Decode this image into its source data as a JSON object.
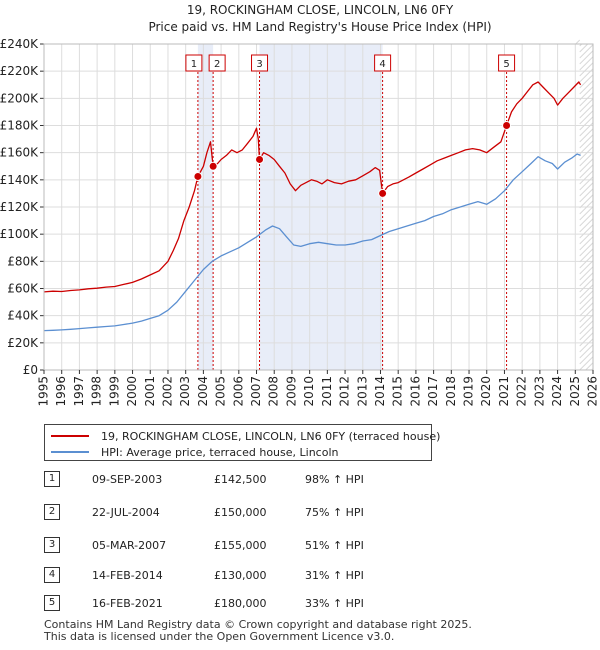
{
  "chart_data": {
    "type": "line",
    "title": "19, ROCKINGHAM CLOSE, LINCOLN, LN6 0FY",
    "subtitle": "Price paid vs. HM Land Registry's House Price Index (HPI)",
    "xlim": [
      1995,
      2026
    ],
    "ylim": [
      0,
      240000
    ],
    "y_tick_values": [
      0,
      20000,
      40000,
      60000,
      80000,
      100000,
      120000,
      140000,
      160000,
      180000,
      200000,
      220000,
      240000
    ],
    "y_tick_labels": [
      "£0",
      "£20K",
      "£40K",
      "£60K",
      "£80K",
      "£100K",
      "£120K",
      "£140K",
      "£160K",
      "£180K",
      "£200K",
      "£220K",
      "£240K"
    ],
    "x_tick_values": [
      1995,
      1996,
      1997,
      1998,
      1999,
      2000,
      2001,
      2002,
      2003,
      2004,
      2005,
      2006,
      2007,
      2008,
      2009,
      2010,
      2011,
      2012,
      2013,
      2014,
      2015,
      2016,
      2017,
      2018,
      2019,
      2020,
      2021,
      2022,
      2023,
      2024,
      2025,
      2026
    ],
    "x_tick_labels": [
      "1995",
      "1996",
      "1997",
      "1998",
      "1999",
      "2000",
      "2001",
      "2002",
      "2003",
      "2004",
      "2005",
      "2006",
      "2007",
      "2008",
      "2009",
      "2010",
      "2011",
      "2012",
      "2013",
      "2014",
      "2015",
      "2016",
      "2017",
      "2018",
      "2019",
      "2020",
      "2021",
      "2022",
      "2023",
      "2024",
      "2025",
      "2026"
    ],
    "future_start": 2025.25,
    "shaded_ranges": [
      [
        2003.69,
        2004.55
      ],
      [
        2007.17,
        2014.12
      ]
    ],
    "series": [
      {
        "name": "19, ROCKINGHAM CLOSE, LINCOLN, LN6 0FY (terraced house)",
        "color": "#cc0000",
        "points": [
          [
            1995.0,
            57500
          ],
          [
            1995.5,
            58000
          ],
          [
            1996.0,
            57800
          ],
          [
            1996.5,
            58500
          ],
          [
            1997.0,
            59000
          ],
          [
            1997.5,
            59800
          ],
          [
            1998.0,
            60200
          ],
          [
            1998.5,
            61000
          ],
          [
            1999.0,
            61500
          ],
          [
            1999.5,
            63000
          ],
          [
            2000.0,
            64500
          ],
          [
            2000.5,
            67000
          ],
          [
            2001.0,
            70000
          ],
          [
            2001.5,
            73000
          ],
          [
            2002.0,
            80000
          ],
          [
            2002.3,
            88000
          ],
          [
            2002.6,
            97000
          ],
          [
            2002.9,
            110000
          ],
          [
            2003.2,
            120000
          ],
          [
            2003.5,
            132000
          ],
          [
            2003.69,
            142500
          ],
          [
            2003.8,
            145000
          ],
          [
            2004.0,
            150000
          ],
          [
            2004.2,
            160000
          ],
          [
            2004.4,
            168000
          ],
          [
            2004.55,
            150000
          ],
          [
            2004.8,
            152000
          ],
          [
            2005.0,
            155000
          ],
          [
            2005.3,
            158000
          ],
          [
            2005.6,
            162000
          ],
          [
            2005.9,
            160000
          ],
          [
            2006.2,
            162000
          ],
          [
            2006.5,
            167000
          ],
          [
            2006.8,
            172000
          ],
          [
            2007.0,
            178000
          ],
          [
            2007.1,
            170000
          ],
          [
            2007.17,
            155000
          ],
          [
            2007.4,
            160000
          ],
          [
            2007.7,
            158000
          ],
          [
            2008.0,
            155000
          ],
          [
            2008.3,
            150000
          ],
          [
            2008.6,
            145000
          ],
          [
            2008.9,
            137000
          ],
          [
            2009.2,
            132000
          ],
          [
            2009.5,
            136000
          ],
          [
            2009.8,
            138000
          ],
          [
            2010.1,
            140000
          ],
          [
            2010.4,
            139000
          ],
          [
            2010.7,
            137000
          ],
          [
            2011.0,
            140000
          ],
          [
            2011.4,
            138000
          ],
          [
            2011.8,
            137000
          ],
          [
            2012.2,
            139000
          ],
          [
            2012.6,
            140000
          ],
          [
            2013.0,
            143000
          ],
          [
            2013.4,
            146000
          ],
          [
            2013.7,
            149000
          ],
          [
            2013.95,
            147000
          ],
          [
            2014.12,
            130000
          ],
          [
            2014.4,
            135000
          ],
          [
            2014.7,
            137000
          ],
          [
            2015.0,
            138000
          ],
          [
            2015.3,
            140000
          ],
          [
            2015.6,
            142000
          ],
          [
            2016.0,
            145000
          ],
          [
            2016.4,
            148000
          ],
          [
            2016.8,
            151000
          ],
          [
            2017.2,
            154000
          ],
          [
            2017.6,
            156000
          ],
          [
            2018.0,
            158000
          ],
          [
            2018.4,
            160000
          ],
          [
            2018.8,
            162000
          ],
          [
            2019.2,
            163000
          ],
          [
            2019.6,
            162000
          ],
          [
            2020.0,
            160000
          ],
          [
            2020.4,
            164000
          ],
          [
            2020.8,
            168000
          ],
          [
            2021.12,
            180000
          ],
          [
            2021.4,
            190000
          ],
          [
            2021.7,
            196000
          ],
          [
            2022.0,
            200000
          ],
          [
            2022.3,
            205000
          ],
          [
            2022.6,
            210000
          ],
          [
            2022.9,
            212000
          ],
          [
            2023.2,
            208000
          ],
          [
            2023.5,
            204000
          ],
          [
            2023.8,
            200000
          ],
          [
            2024.0,
            195000
          ],
          [
            2024.3,
            200000
          ],
          [
            2024.6,
            204000
          ],
          [
            2024.9,
            208000
          ],
          [
            2025.2,
            212000
          ],
          [
            2025.3,
            210000
          ]
        ]
      },
      {
        "name": "HPI: Average price, terraced house, Lincoln",
        "color": "#5b8fd1",
        "points": [
          [
            1995.0,
            29000
          ],
          [
            1995.5,
            29200
          ],
          [
            1996.0,
            29500
          ],
          [
            1996.5,
            30000
          ],
          [
            1997.0,
            30500
          ],
          [
            1997.5,
            31000
          ],
          [
            1998.0,
            31500
          ],
          [
            1998.5,
            32000
          ],
          [
            1999.0,
            32500
          ],
          [
            1999.5,
            33500
          ],
          [
            2000.0,
            34500
          ],
          [
            2000.5,
            36000
          ],
          [
            2001.0,
            38000
          ],
          [
            2001.5,
            40000
          ],
          [
            2002.0,
            44000
          ],
          [
            2002.5,
            50000
          ],
          [
            2003.0,
            58000
          ],
          [
            2003.5,
            66000
          ],
          [
            2004.0,
            74000
          ],
          [
            2004.5,
            80000
          ],
          [
            2005.0,
            84000
          ],
          [
            2005.5,
            87000
          ],
          [
            2006.0,
            90000
          ],
          [
            2006.5,
            94000
          ],
          [
            2007.0,
            98000
          ],
          [
            2007.5,
            103000
          ],
          [
            2007.9,
            106000
          ],
          [
            2008.3,
            104000
          ],
          [
            2008.7,
            98000
          ],
          [
            2009.1,
            92000
          ],
          [
            2009.5,
            91000
          ],
          [
            2010.0,
            93000
          ],
          [
            2010.5,
            94000
          ],
          [
            2011.0,
            93000
          ],
          [
            2011.5,
            92000
          ],
          [
            2012.0,
            92000
          ],
          [
            2012.5,
            93000
          ],
          [
            2013.0,
            95000
          ],
          [
            2013.5,
            96000
          ],
          [
            2014.0,
            99000
          ],
          [
            2014.5,
            102000
          ],
          [
            2015.0,
            104000
          ],
          [
            2015.5,
            106000
          ],
          [
            2016.0,
            108000
          ],
          [
            2016.5,
            110000
          ],
          [
            2017.0,
            113000
          ],
          [
            2017.5,
            115000
          ],
          [
            2018.0,
            118000
          ],
          [
            2018.5,
            120000
          ],
          [
            2019.0,
            122000
          ],
          [
            2019.5,
            124000
          ],
          [
            2020.0,
            122000
          ],
          [
            2020.5,
            126000
          ],
          [
            2021.0,
            132000
          ],
          [
            2021.5,
            140000
          ],
          [
            2022.0,
            146000
          ],
          [
            2022.5,
            152000
          ],
          [
            2022.9,
            157000
          ],
          [
            2023.3,
            154000
          ],
          [
            2023.7,
            152000
          ],
          [
            2024.0,
            148000
          ],
          [
            2024.4,
            153000
          ],
          [
            2024.8,
            156000
          ],
          [
            2025.1,
            159000
          ],
          [
            2025.3,
            158000
          ]
        ]
      }
    ],
    "markers": [
      {
        "label": "1",
        "x": 2003.69,
        "y": 142500
      },
      {
        "label": "2",
        "x": 2004.55,
        "y": 150000
      },
      {
        "label": "3",
        "x": 2007.17,
        "y": 155000
      },
      {
        "label": "4",
        "x": 2014.12,
        "y": 130000
      },
      {
        "label": "5",
        "x": 2021.12,
        "y": 180000
      }
    ]
  },
  "legend": {
    "property_label": "19, ROCKINGHAM CLOSE, LINCOLN, LN6 0FY (terraced house)",
    "hpi_label": "HPI: Average price, terraced house, Lincoln",
    "property_color": "#cc0000",
    "hpi_color": "#5b8fd1"
  },
  "sales": [
    {
      "num": "1",
      "date": "09-SEP-2003",
      "price": "£142,500",
      "hpi": "98% ↑ HPI"
    },
    {
      "num": "2",
      "date": "22-JUL-2004",
      "price": "£150,000",
      "hpi": "75% ↑ HPI"
    },
    {
      "num": "3",
      "date": "05-MAR-2007",
      "price": "£155,000",
      "hpi": "51% ↑ HPI"
    },
    {
      "num": "4",
      "date": "14-FEB-2014",
      "price": "£130,000",
      "hpi": "31% ↑ HPI"
    },
    {
      "num": "5",
      "date": "16-FEB-2021",
      "price": "£180,000",
      "hpi": "33% ↑ HPI"
    }
  ],
  "footer": {
    "line1": "Contains HM Land Registry data © Crown copyright and database right 2025.",
    "line2": "This data is licensed under the Open Government Licence v3.0."
  }
}
